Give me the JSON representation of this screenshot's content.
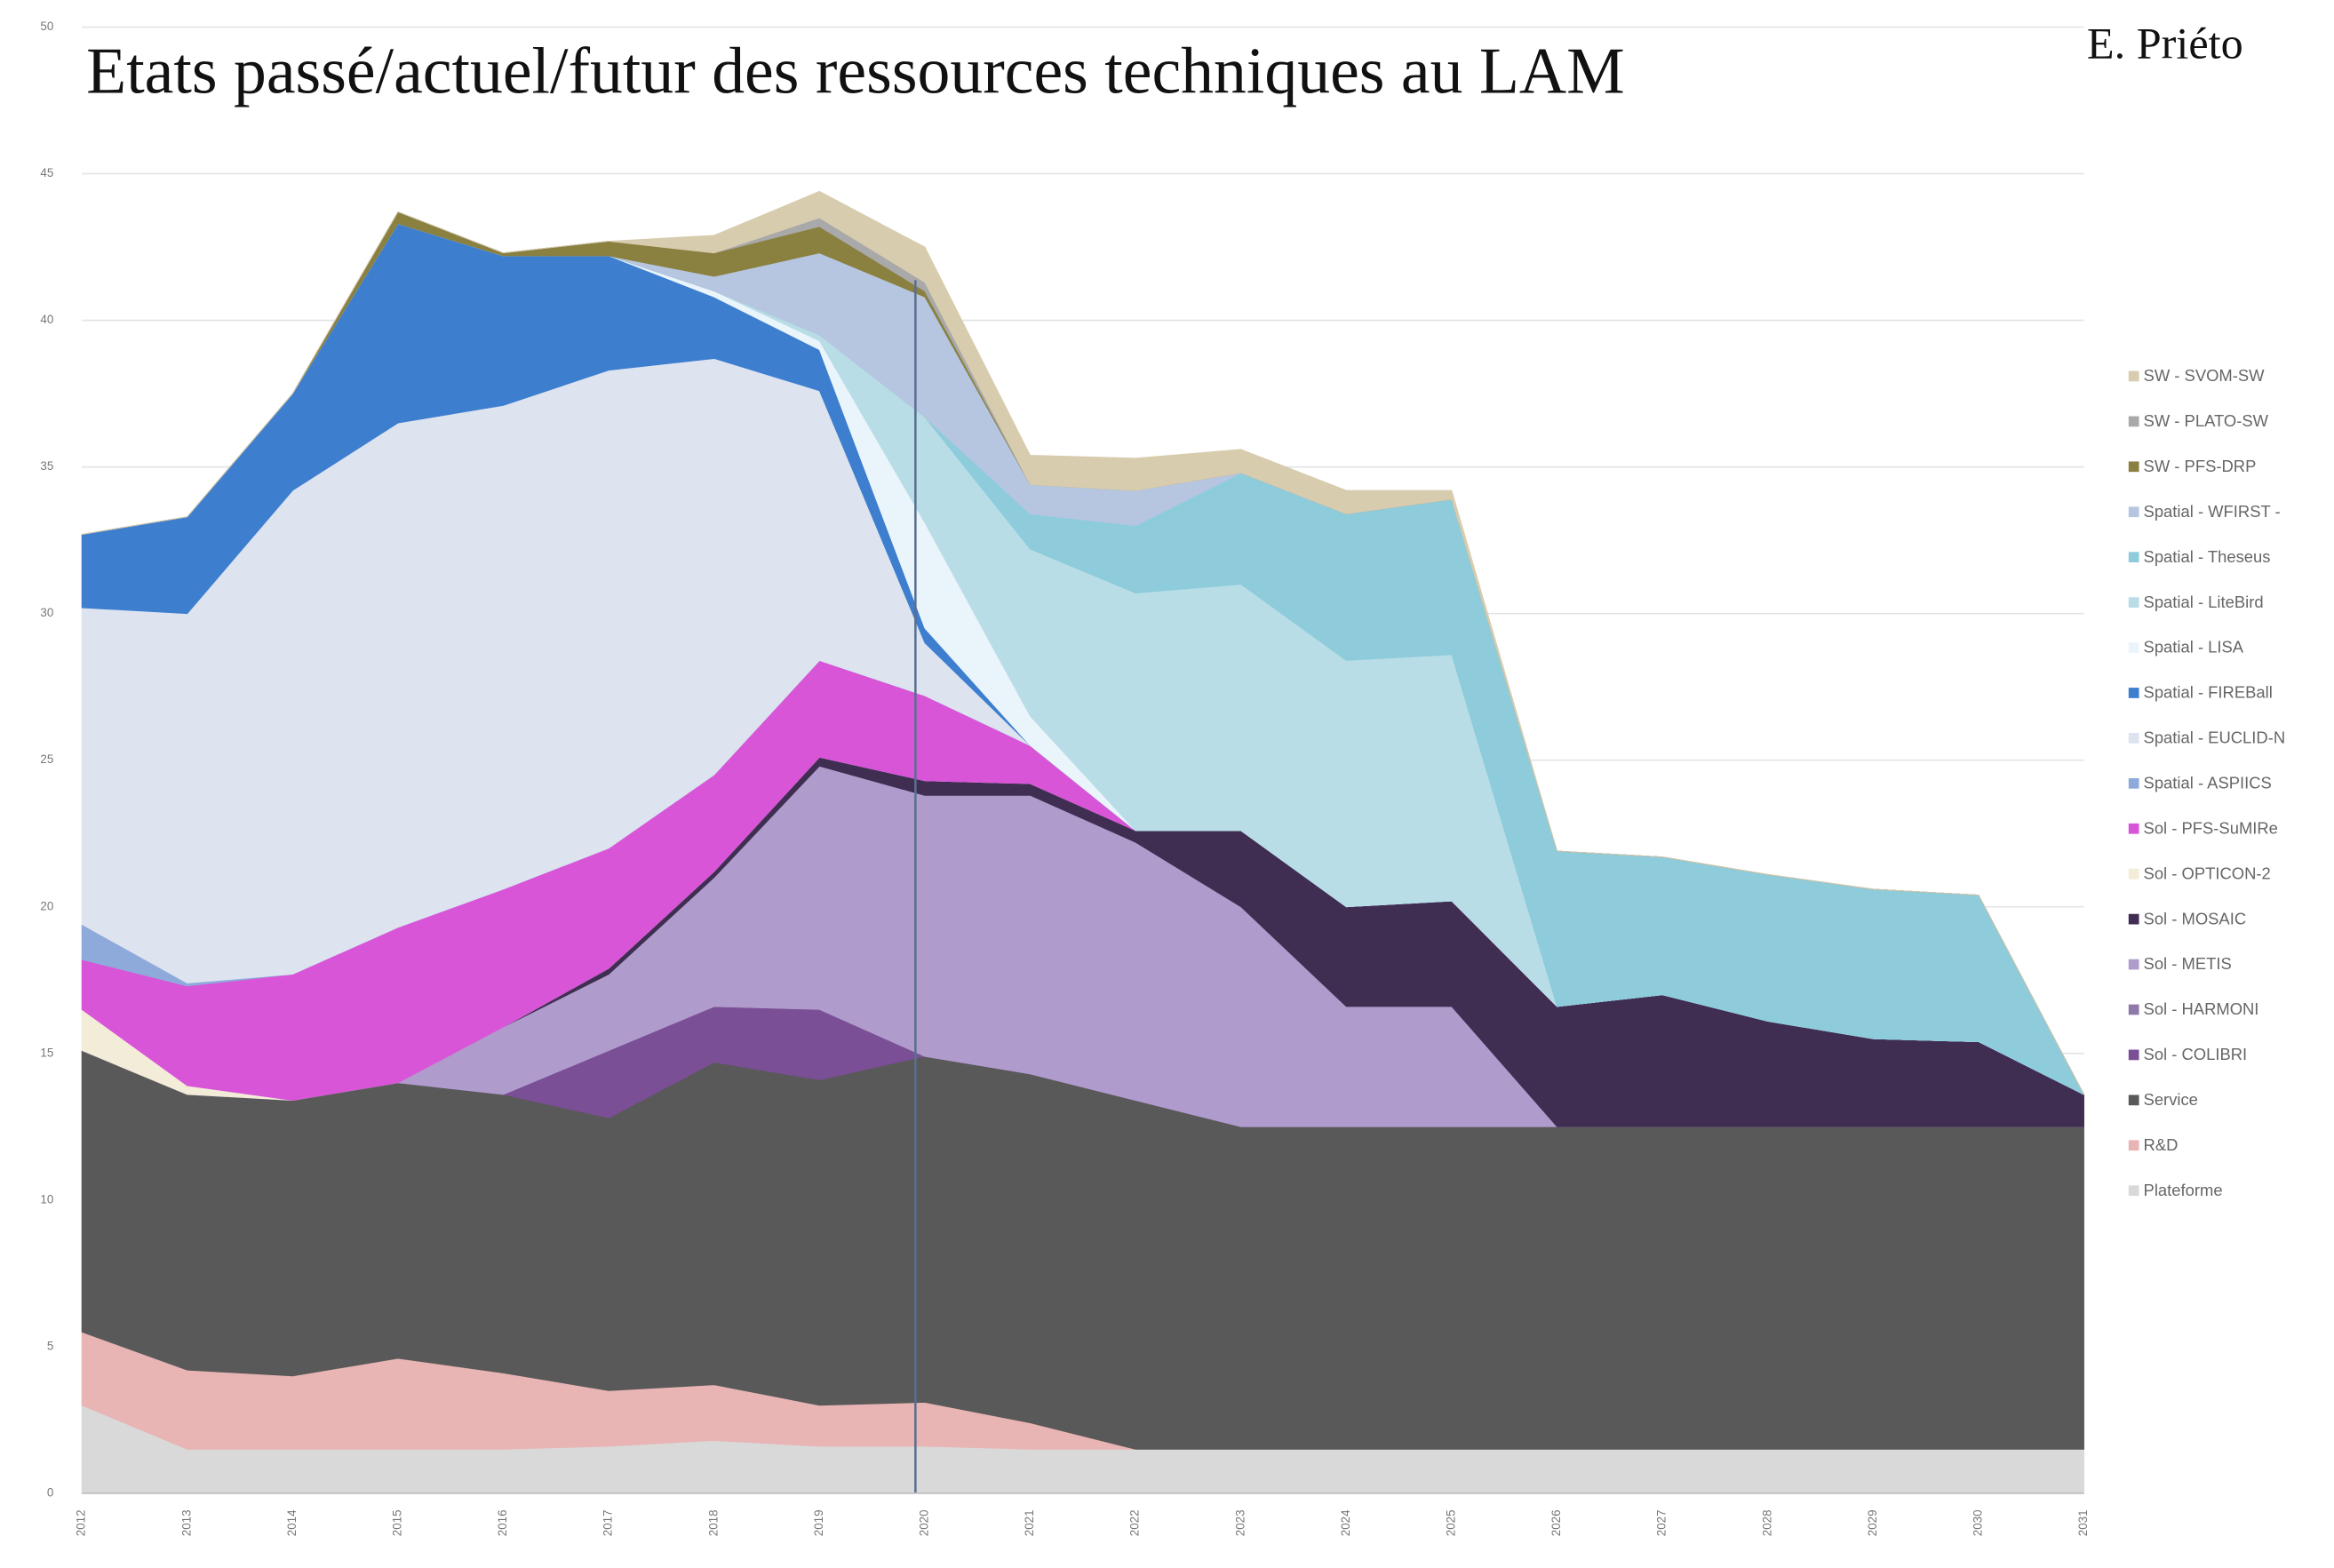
{
  "chart_data": {
    "type": "stacked_area",
    "title": "Etats passé/actuel/futur  des ressources techniques au LAM",
    "author": "E. Priéto",
    "categories": [
      "2012",
      "2013",
      "2014",
      "2015",
      "2016",
      "2017",
      "2018",
      "2019",
      "2020",
      "2021",
      "2022",
      "2023",
      "2024",
      "2025",
      "2026",
      "2027",
      "2028",
      "2029",
      "2030",
      "2031"
    ],
    "ylim": [
      0,
      50
    ],
    "yticks": [
      0,
      5,
      10,
      15,
      20,
      25,
      30,
      35,
      40,
      45,
      50
    ],
    "grid": true,
    "legend": "right",
    "series": [
      {
        "name": "Plateforme",
        "color": "#d9d9d9",
        "values": [
          3,
          1.5,
          1.5,
          1.5,
          1.5,
          1.6,
          1.8,
          1.6,
          1.6,
          1.5,
          1.5,
          1.5,
          1.5,
          1.5,
          1.5,
          1.5,
          1.5,
          1.5,
          1.5,
          1.5
        ]
      },
      {
        "name": "R&D",
        "color": "#e8b4b4",
        "values": [
          2.5,
          2.7,
          2.5,
          3.1,
          2.6,
          1.9,
          1.9,
          1.4,
          1.5,
          0.9,
          0,
          0,
          0,
          0,
          0,
          0,
          0,
          0,
          0,
          0
        ]
      },
      {
        "name": "Service",
        "color": "#595959",
        "values": [
          9.6,
          9.4,
          9.4,
          9.4,
          9.5,
          9.3,
          11,
          11.1,
          11.8,
          11.9,
          11.9,
          11,
          11,
          11,
          11,
          11,
          11,
          11,
          11,
          11
        ]
      },
      {
        "name": "Sol - COLIBRI",
        "color": "#7b4f96",
        "values": [
          0,
          0,
          0,
          0,
          0,
          2.3,
          1.9,
          2.4,
          0,
          0,
          0,
          0,
          0,
          0,
          0,
          0,
          0,
          0,
          0,
          0
        ]
      },
      {
        "name": "Sol - HARMONI",
        "color": "#8e7aa8",
        "values": [
          0,
          0,
          0,
          0,
          0,
          0,
          0,
          0,
          0,
          0,
          0,
          0,
          0,
          0,
          0,
          0,
          0,
          0,
          0,
          0
        ]
      },
      {
        "name": "Sol - METIS",
        "color": "#b09ccc",
        "values": [
          0,
          0,
          0,
          0,
          2.3,
          2.6,
          4.4,
          8.3,
          8.9,
          9.5,
          8.8,
          7.5,
          4.1,
          4.1,
          0,
          0,
          0,
          0,
          0,
          0
        ]
      },
      {
        "name": "Sol - MOSAIC",
        "color": "#3f2e52",
        "values": [
          0,
          0,
          0,
          0,
          0,
          0.2,
          0.2,
          0.3,
          0.5,
          0.4,
          0.4,
          2.6,
          3.4,
          3.6,
          4.1,
          4.5,
          3.6,
          3,
          2.9,
          1.1
        ]
      },
      {
        "name": "Sol - OPTICON-2",
        "color": "#f2ecd8",
        "values": [
          1.4,
          0.3,
          0,
          0,
          0,
          0,
          0,
          0,
          0,
          0,
          0,
          0,
          0,
          0,
          0,
          0,
          0,
          0,
          0,
          0
        ]
      },
      {
        "name": "Sol - PFS-SuMIRe",
        "color": "#d855d8",
        "values": [
          1.7,
          3.4,
          4.3,
          5.3,
          4.7,
          4.1,
          3.3,
          3.3,
          2.9,
          1.3,
          0,
          0,
          0,
          0,
          0,
          0,
          0,
          0,
          0,
          0
        ]
      },
      {
        "name": "Spatial - ASPIICS",
        "color": "#8eaadb",
        "values": [
          1.2,
          0.1,
          0,
          0,
          0,
          0,
          0,
          0,
          0,
          0,
          0,
          0,
          0,
          0,
          0,
          0,
          0,
          0,
          0,
          0
        ]
      },
      {
        "name": "Spatial - EUCLID-N",
        "color": "#dde3ef",
        "values": [
          10.8,
          12.6,
          16.5,
          17.2,
          16.5,
          16.3,
          14.2,
          9.2,
          1.8,
          0,
          0,
          0,
          0,
          0,
          0,
          0,
          0,
          0,
          0,
          0
        ]
      },
      {
        "name": "Spatial - FIREBall",
        "color": "#3d7ecf",
        "values": [
          2.5,
          3.3,
          3.3,
          6.8,
          5.1,
          3.9,
          2.1,
          1.4,
          0.5,
          0,
          0,
          0,
          0,
          0,
          0,
          0,
          0,
          0,
          0,
          0
        ]
      },
      {
        "name": "Spatial - LISA",
        "color": "#eaf4fb",
        "values": [
          0,
          0,
          0,
          0,
          0,
          0,
          0.2,
          0.3,
          3.6,
          1,
          0,
          0,
          0,
          0,
          0,
          0,
          0,
          0,
          0,
          0
        ]
      },
      {
        "name": "Spatial - LiteBird",
        "color": "#b8dde6",
        "values": [
          0,
          0,
          0,
          0,
          0,
          0,
          0,
          0.2,
          3.6,
          5.7,
          8.1,
          8.4,
          8.4,
          8.4,
          0,
          0,
          0,
          0,
          0,
          0
        ]
      },
      {
        "name": "Spatial - Theseus",
        "color": "#8ecbdb",
        "values": [
          0,
          0,
          0,
          0,
          0,
          0,
          0,
          0,
          0,
          1.2,
          2.3,
          3.8,
          5,
          5.3,
          5.3,
          4.7,
          5,
          5.1,
          5,
          0
        ]
      },
      {
        "name": "Spatial - WFIRST -",
        "color": "#b6c6e0",
        "values": [
          0,
          0,
          0,
          0,
          0,
          0,
          0.5,
          2.8,
          4.1,
          1,
          1.2,
          0,
          0,
          0,
          0,
          0,
          0,
          0,
          0,
          0
        ]
      },
      {
        "name": "SW - PFS-DRP",
        "color": "#8a8040",
        "values": [
          0,
          0,
          0,
          0.4,
          0.1,
          0.5,
          0.8,
          0.9,
          0.2,
          0,
          0,
          0,
          0,
          0,
          0,
          0,
          0,
          0,
          0,
          0
        ]
      },
      {
        "name": "SW - PLATO-SW",
        "color": "#a9a9a9",
        "values": [
          0,
          0,
          0,
          0,
          0,
          0,
          0,
          0.3,
          0.3,
          0,
          0,
          0,
          0,
          0,
          0,
          0,
          0,
          0,
          0,
          0
        ]
      },
      {
        "name": "SW - SVOM-SW",
        "color": "#d8ccae",
        "values": [
          0,
          0,
          0,
          0,
          0,
          0,
          0.6,
          0.9,
          1.2,
          1,
          1.1,
          0.8,
          0.8,
          0.3,
          0,
          0,
          0,
          0,
          0,
          0
        ]
      }
    ]
  }
}
